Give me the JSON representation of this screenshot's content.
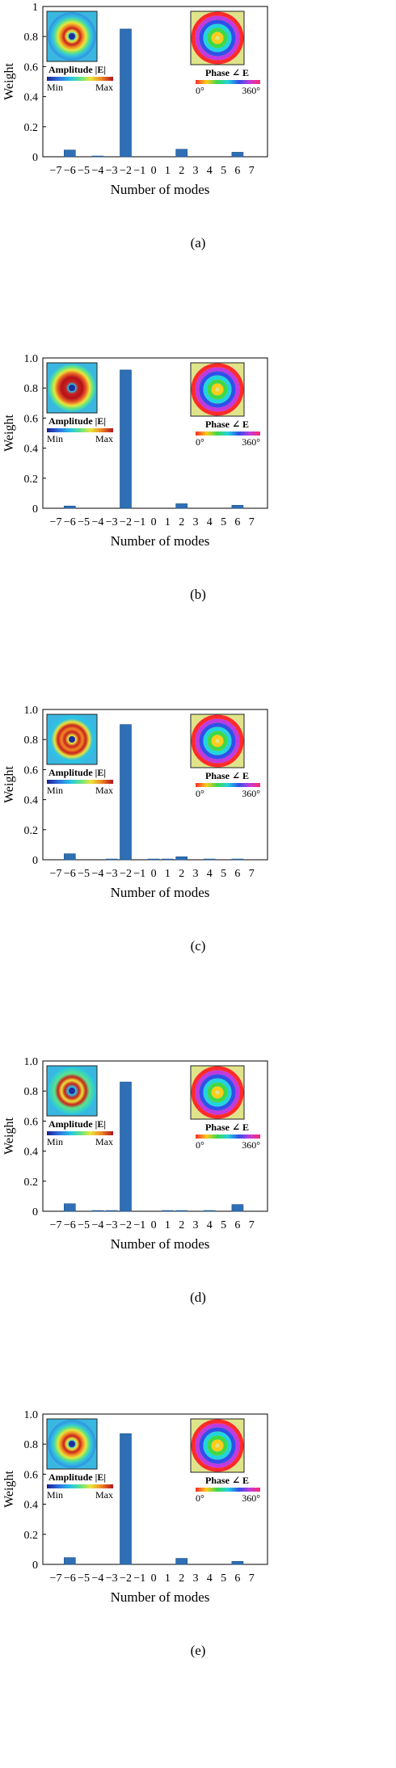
{
  "chart_data": [
    {
      "type": "bar",
      "panel_label": "(a)",
      "xlabel": "Number of modes",
      "ylabel": "Weight",
      "ylim": [
        0,
        1.0
      ],
      "yticks": [
        "0",
        "0.2",
        "0.4",
        "0.6",
        "0.8",
        "1"
      ],
      "categories": [
        "−7",
        "−6",
        "−5",
        "−4",
        "−3",
        "−2",
        "−1",
        "0",
        "1",
        "2",
        "3",
        "4",
        "5",
        "6",
        "7"
      ],
      "values": [
        0.0,
        0.045,
        0.0,
        0.005,
        0.0,
        0.85,
        0.0,
        0.0,
        0.0,
        0.05,
        0.0,
        0.0,
        0.0,
        0.03,
        0.0
      ],
      "inset_amplitude": {
        "title": "Amplitude |E|",
        "min_label": "Min",
        "max_label": "Max"
      },
      "inset_phase": {
        "title": "Phase ∠ E",
        "min_label": "0°",
        "max_label": "360°"
      }
    },
    {
      "type": "bar",
      "panel_label": "(b)",
      "xlabel": "Number of modes",
      "ylabel": "Weight",
      "ylim": [
        0,
        1.0
      ],
      "yticks": [
        "0",
        "0.2",
        "0.4",
        "0.6",
        "0.8",
        "1.0"
      ],
      "categories": [
        "−7",
        "−6",
        "−5",
        "−4",
        "−3",
        "−2",
        "−1",
        "0",
        "1",
        "2",
        "3",
        "4",
        "5",
        "6",
        "7"
      ],
      "values": [
        0.0,
        0.015,
        0.0,
        0.0,
        0.0,
        0.92,
        0.0,
        0.0,
        0.0,
        0.03,
        0.0,
        0.0,
        0.0,
        0.02,
        0.0
      ],
      "inset_amplitude": {
        "title": "Amplitude |E|",
        "min_label": "Min",
        "max_label": "Max"
      },
      "inset_phase": {
        "title": "Phase ∠ E",
        "min_label": "0°",
        "max_label": "360°"
      }
    },
    {
      "type": "bar",
      "panel_label": "(c)",
      "xlabel": "Number of modes",
      "ylabel": "Weight",
      "ylim": [
        0,
        1.0
      ],
      "yticks": [
        "0",
        "0.2",
        "0.4",
        "0.6",
        "0.8",
        "1.0"
      ],
      "categories": [
        "−7",
        "−6",
        "−5",
        "−4",
        "−3",
        "−2",
        "−1",
        "0",
        "1",
        "2",
        "3",
        "4",
        "5",
        "6",
        "7"
      ],
      "values": [
        0.0,
        0.04,
        0.0,
        0.0,
        0.005,
        0.9,
        0.0,
        0.005,
        0.005,
        0.02,
        0.0,
        0.005,
        0.0,
        0.005,
        0.0
      ],
      "inset_amplitude": {
        "title": "Amplitude |E|",
        "min_label": "Min",
        "max_label": "Max"
      },
      "inset_phase": {
        "title": "Phase ∠ E",
        "min_label": "0°",
        "max_label": "360°"
      }
    },
    {
      "type": "bar",
      "panel_label": "(d)",
      "xlabel": "Number of modes",
      "ylabel": "Weight",
      "ylim": [
        0,
        1.0
      ],
      "yticks": [
        "0",
        "0.2",
        "0.4",
        "0.6",
        "0.8",
        "1.0"
      ],
      "categories": [
        "−7",
        "−6",
        "−5",
        "−4",
        "−3",
        "−2",
        "−1",
        "0",
        "1",
        "2",
        "3",
        "4",
        "5",
        "6",
        "7"
      ],
      "values": [
        0.0,
        0.05,
        0.0,
        0.005,
        0.005,
        0.86,
        0.0,
        0.0,
        0.005,
        0.005,
        0.0,
        0.005,
        0.0,
        0.045,
        0.0
      ],
      "inset_amplitude": {
        "title": "Amplitude |E|",
        "min_label": "Min",
        "max_label": "Max"
      },
      "inset_phase": {
        "title": "Phase ∠ E",
        "min_label": "0°",
        "max_label": "360°"
      }
    },
    {
      "type": "bar",
      "panel_label": "(e)",
      "xlabel": "Number of modes",
      "ylabel": "Weight",
      "ylim": [
        0,
        1.0
      ],
      "yticks": [
        "0",
        "0.2",
        "0.4",
        "0.6",
        "0.8",
        "1.0"
      ],
      "categories": [
        "−7",
        "−6",
        "−5",
        "−4",
        "−3",
        "−2",
        "−1",
        "0",
        "1",
        "2",
        "3",
        "4",
        "5",
        "6",
        "7"
      ],
      "values": [
        0.0,
        0.045,
        0.0,
        0.0,
        0.0,
        0.87,
        0.0,
        0.0,
        0.0,
        0.04,
        0.0,
        0.0,
        0.0,
        0.02,
        0.0
      ],
      "inset_amplitude": {
        "title": "Amplitude |E|",
        "min_label": "Min",
        "max_label": "Max"
      },
      "inset_phase": {
        "title": "Phase ∠ E",
        "min_label": "0°",
        "max_label": "360°"
      }
    }
  ],
  "colors": {
    "bar_fill": "#2e6fb5",
    "bar_stroke": "#1a4f8a",
    "axis": "#000000"
  }
}
